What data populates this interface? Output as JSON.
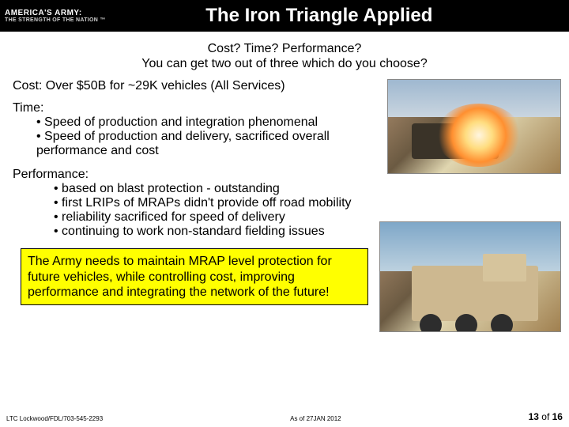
{
  "header": {
    "logo_line1": "AMERICA'S ARMY:",
    "logo_line2": "THE STRENGTH OF THE NATION ™",
    "title": "The Iron Triangle Applied"
  },
  "subhead": {
    "line1": "Cost? Time? Performance?",
    "line2": "You can get two out of three which do you choose?"
  },
  "cost_line": "Cost: Over $50B for ~29K vehicles (All Services)",
  "time": {
    "heading": "Time:",
    "bullets": [
      "Speed of production and integration phenomenal",
      "Speed of production and delivery, sacrificed overall performance and cost"
    ]
  },
  "performance": {
    "heading": "Performance:",
    "bullets": [
      "based on blast protection - outstanding",
      "first LRIPs of MRAPs didn't provide off road mobility",
      "reliability sacrificed for speed of delivery",
      "continuing to work non-standard fielding issues"
    ]
  },
  "callout": "The Army needs to maintain MRAP level protection for future vehicles, while controlling cost, improving performance and integrating the network of the future!",
  "footer": {
    "left": "LTC Lockwood/FDL/703-545-2293",
    "asof": "As of 27JAN 2012",
    "page_current": "13",
    "page_of": " of ",
    "page_total": "16"
  },
  "images": {
    "img1_name": "vehicle-blast-photo",
    "img2_name": "mrap-vehicle-photo"
  },
  "colors": {
    "header_bg": "#000000",
    "callout_bg": "#ffff00",
    "text": "#000000",
    "title_text": "#ffffff"
  }
}
